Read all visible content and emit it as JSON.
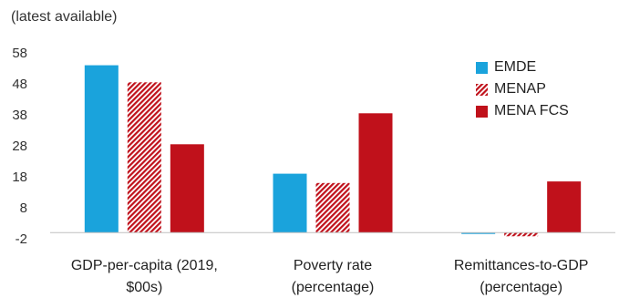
{
  "chart_data": {
    "type": "bar",
    "subtitle": "(latest available)",
    "categories": [
      [
        "GDP-per-capita (2019,",
        "$00s)"
      ],
      [
        "Poverty rate",
        "(percentage)"
      ],
      [
        "Remittances-to-GDP",
        "(percentage)"
      ]
    ],
    "series": [
      {
        "name": "EMDE",
        "values": [
          54,
          19,
          0
        ],
        "color": "#1aa3dc",
        "pattern": "solid"
      },
      {
        "name": "MENAP",
        "values": [
          48.5,
          16,
          -1.2
        ],
        "color": "#c0111b",
        "pattern": "hatched"
      },
      {
        "name": "MENA FCS",
        "values": [
          28.5,
          38.5,
          16.5
        ],
        "color": "#c0111b",
        "pattern": "solid"
      }
    ],
    "yticks": [
      58,
      48,
      38,
      28,
      18,
      8,
      -2
    ],
    "ylim": [
      -2,
      58
    ],
    "xlabel": "",
    "ylabel": "",
    "grid": false,
    "legend_position": "top-right"
  }
}
